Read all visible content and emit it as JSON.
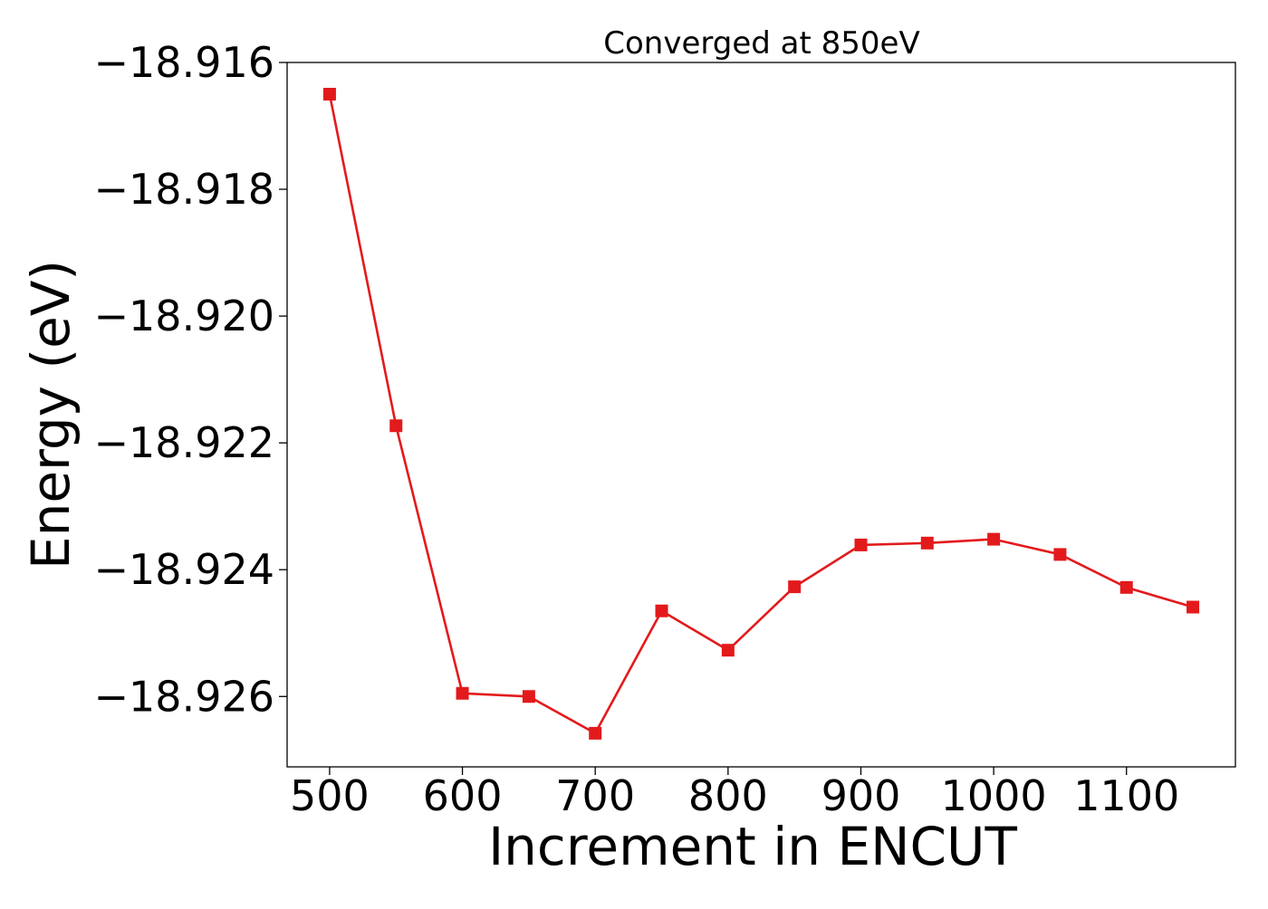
{
  "chart_data": {
    "type": "line",
    "title": "Converged at 850eV",
    "xlabel": "Increment in ENCUT",
    "ylabel": "Energy (eV)",
    "x": [
      500,
      550,
      600,
      650,
      700,
      750,
      800,
      850,
      900,
      950,
      1000,
      1050,
      1100,
      1150
    ],
    "series": [
      {
        "name": "",
        "color": "#e31a1c",
        "marker": "square",
        "values": [
          -18.9165,
          -18.92173,
          -18.92595,
          -18.926,
          -18.92658,
          -18.92465,
          -18.92527,
          -18.92427,
          -18.92361,
          -18.92358,
          -18.92352,
          -18.92376,
          -18.92428,
          -18.92459
        ]
      }
    ],
    "xlim": [
      468,
      1182
    ],
    "ylim": [
      -18.92711,
      -18.916
    ],
    "x_ticks": [
      500,
      600,
      700,
      800,
      900,
      1000,
      1100
    ],
    "x_tick_labels": [
      "500",
      "600",
      "700",
      "800",
      "900",
      "1000",
      "1100"
    ],
    "y_ticks": [
      -18.916,
      -18.918,
      -18.92,
      -18.922,
      -18.924,
      -18.926
    ],
    "y_tick_labels": [
      "−18.916",
      "−18.918",
      "−18.920",
      "−18.922",
      "−18.924",
      "−18.926"
    ],
    "grid": false,
    "legend": "none"
  }
}
